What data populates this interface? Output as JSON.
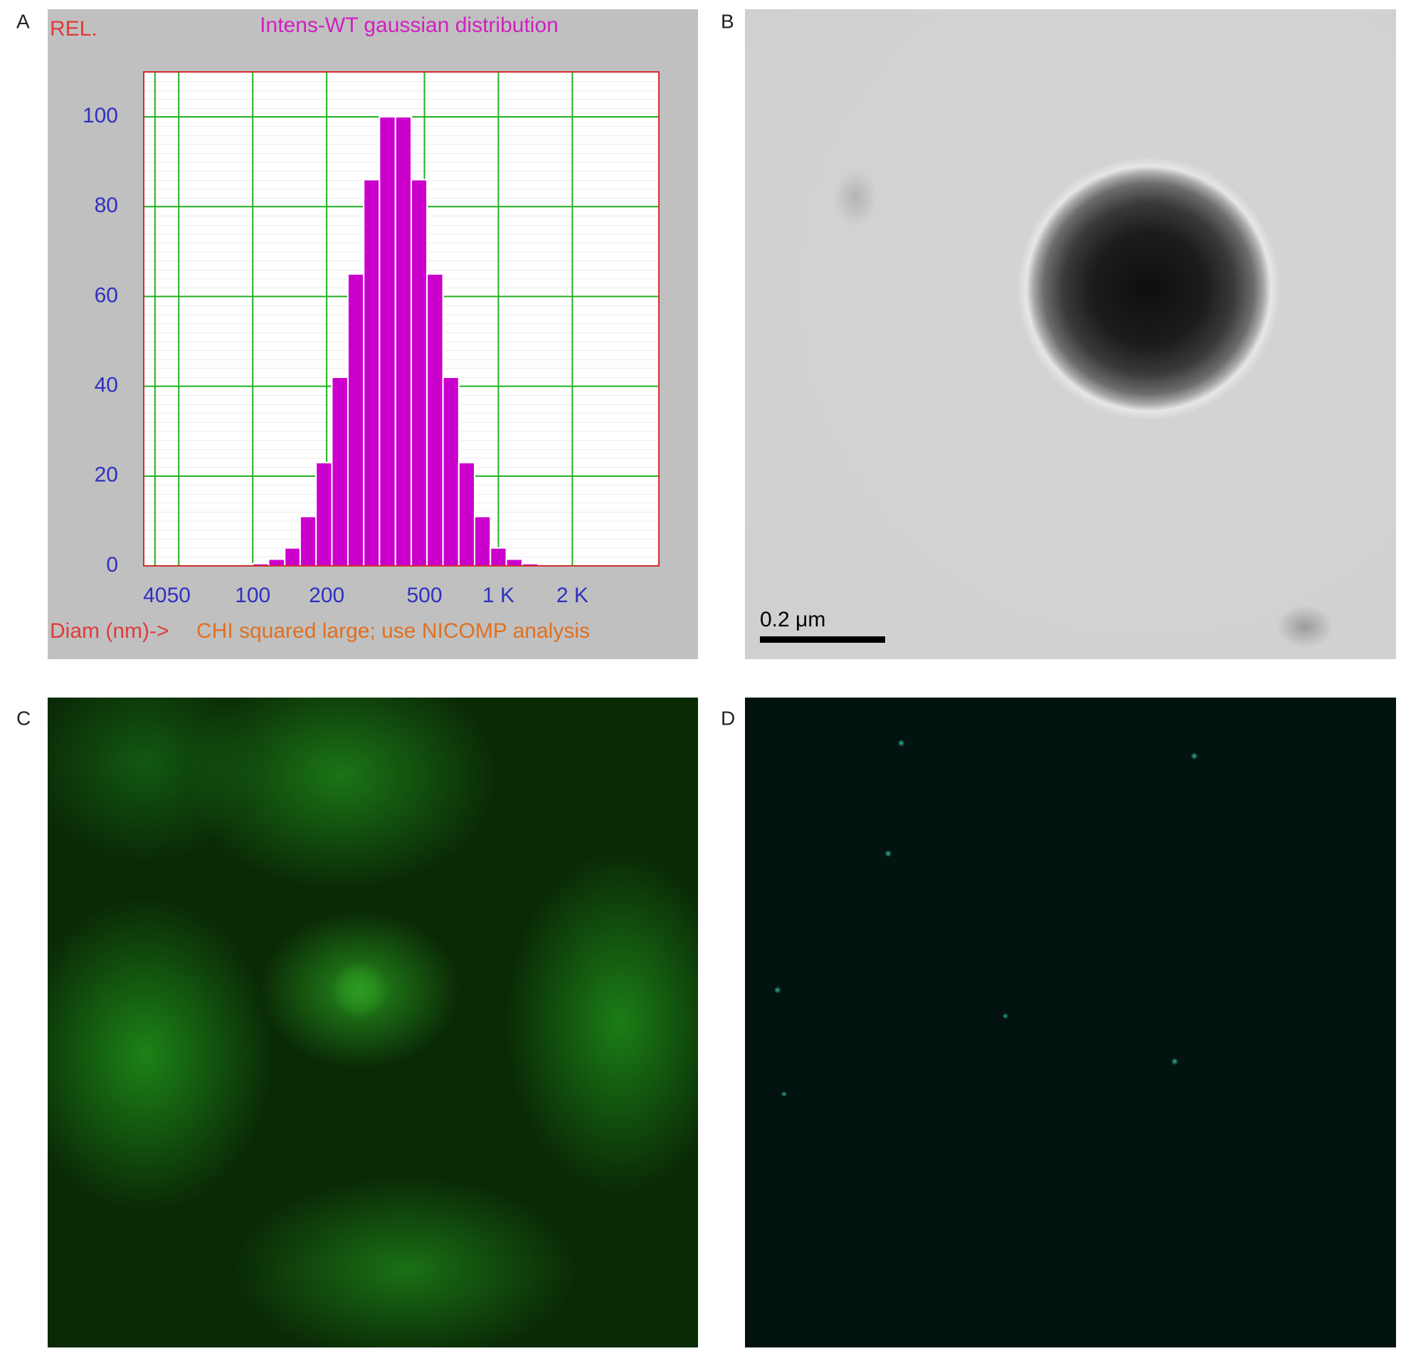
{
  "panel_labels": [
    "A",
    "B",
    "C",
    "D"
  ],
  "scale_bar": "0.2 μm",
  "chart_data": {
    "type": "histogram",
    "title": "Intens-WT gaussian distribution",
    "ylabel": "REL.",
    "xlabel": "Diam (nm)->",
    "annotation": "CHI squared large; use NICOMP analysis",
    "xscale": "log",
    "bins": [
      100,
      116,
      135,
      156,
      181,
      210,
      244,
      283,
      328,
      381,
      442,
      512,
      595,
      690,
      800,
      928,
      1077,
      1250,
      1450
    ],
    "values": [
      0.5,
      1.5,
      4,
      11,
      23,
      42,
      65,
      86,
      100,
      100,
      86,
      65,
      42,
      23,
      11,
      4,
      1.5,
      0.5
    ],
    "color": "#cc00cc",
    "xlim": [
      36,
      4500
    ],
    "xticks": [
      40,
      50,
      100,
      200,
      500,
      {
        "value": 1000,
        "label": "1 K"
      },
      {
        "value": 2000,
        "label": "2 K"
      }
    ],
    "ylim": [
      0,
      110
    ],
    "yticks": [
      0,
      20,
      40,
      60,
      80,
      100
    ],
    "grid": true
  }
}
